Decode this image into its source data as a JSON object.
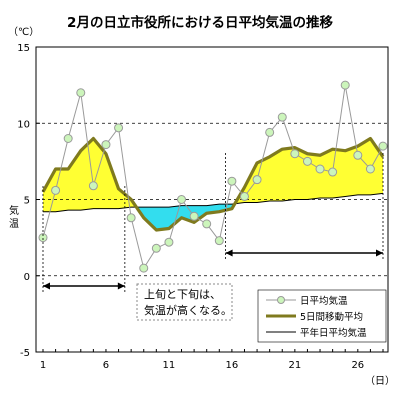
{
  "chart_data": {
    "type": "line",
    "title": "2月の日立市役所における日平均気温の推移",
    "ylabel": "気温",
    "y_unit": "（℃）",
    "x_unit": "（日）",
    "ylim": [
      -5,
      15
    ],
    "yticks": [
      -5,
      0,
      5,
      10,
      15
    ],
    "xlim": [
      1,
      28
    ],
    "xticks": [
      1,
      6,
      11,
      16,
      21,
      26
    ],
    "grid": "dashed horizontal at 0, 5, 10",
    "x": [
      1,
      2,
      3,
      4,
      5,
      6,
      7,
      8,
      9,
      10,
      11,
      12,
      13,
      14,
      15,
      16,
      17,
      18,
      19,
      20,
      21,
      22,
      23,
      24,
      25,
      26,
      27,
      28
    ],
    "series": [
      {
        "name": "日平均気温",
        "style": "line-with-circle-markers",
        "color": "#9a9a9a",
        "marker_fill": "#ccf5bb",
        "values": [
          2.5,
          5.6,
          9.0,
          12.0,
          5.9,
          8.6,
          9.7,
          3.8,
          0.5,
          1.8,
          2.2,
          5.0,
          3.9,
          3.4,
          2.3,
          6.2,
          5.2,
          6.3,
          9.4,
          10.4,
          8.0,
          7.5,
          7.0,
          6.8,
          12.5,
          7.9,
          7.0,
          8.5
        ]
      },
      {
        "name": "5日間移動平均",
        "style": "thick-line",
        "color": "#7f7a1e",
        "values": [
          5.5,
          7.0,
          7.0,
          8.2,
          9.0,
          8.0,
          5.7,
          5.0,
          3.8,
          3.0,
          3.1,
          3.8,
          3.5,
          4.1,
          4.2,
          4.4,
          5.8,
          7.4,
          7.8,
          8.3,
          8.4,
          8.0,
          7.9,
          8.3,
          8.2,
          8.5,
          9.0,
          7.8
        ]
      },
      {
        "name": "平年日平均気温",
        "style": "thin-line",
        "color": "#000000",
        "values": [
          4.2,
          4.2,
          4.3,
          4.3,
          4.4,
          4.4,
          4.4,
          4.5,
          4.5,
          4.5,
          4.5,
          4.6,
          4.6,
          4.6,
          4.7,
          4.7,
          4.8,
          4.8,
          4.9,
          4.9,
          5.0,
          5.0,
          5.1,
          5.1,
          5.2,
          5.3,
          5.3,
          5.4
        ]
      }
    ],
    "fill_above_color": "#ffff33",
    "fill_below_color": "#33ddee",
    "annotations": [
      {
        "text_lines": [
          "上旬と下旬は、",
          "気温が高くなる。"
        ],
        "arrows": [
          [
            1,
            7.5
          ],
          [
            15.5,
            28
          ]
        ]
      }
    ],
    "legend_placement": "bottom-right"
  }
}
